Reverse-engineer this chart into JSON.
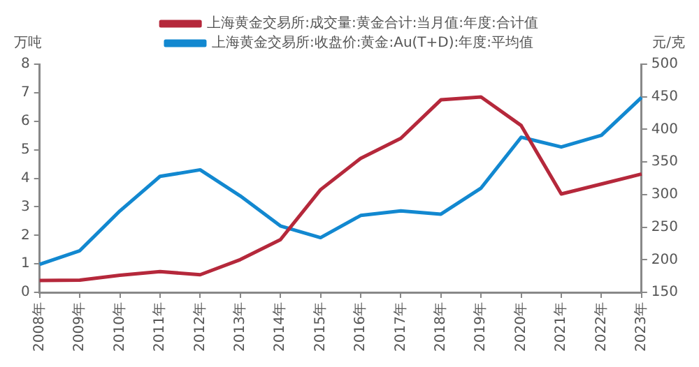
{
  "chart_data": {
    "type": "line",
    "ylabel": "万吨",
    "y2label": "元/克",
    "categories": [
      "2008年",
      "2009年",
      "2010年",
      "2011年",
      "2012年",
      "2013年",
      "2014年",
      "2015年",
      "2016年",
      "2017年",
      "2018年",
      "2019年",
      "2020年",
      "2021年",
      "2022年",
      "2023年"
    ],
    "series": [
      {
        "name": "上海黄金交易所:成交量:黄金合计:当月值:年度:合计值",
        "color": "#b5283b",
        "values": [
          0.42,
          0.43,
          0.6,
          0.73,
          0.62,
          1.15,
          1.85,
          3.6,
          4.7,
          5.4,
          6.75,
          6.85,
          5.85,
          3.45,
          3.8,
          4.15
        ]
      },
      {
        "name": "上海黄金交易所:收盘价:黄金:Au(T+D):年度:平均值",
        "color": "#1288d0",
        "axis": "y2",
        "values": [
          193,
          214,
          275,
          328,
          338,
          298,
          252,
          234,
          268,
          275,
          270,
          310,
          388,
          373,
          391,
          449
        ]
      }
    ],
    "ylim": [
      0,
      8
    ],
    "yticks": [
      0,
      1,
      2,
      3,
      4,
      5,
      6,
      7,
      8
    ],
    "y2lim": [
      150,
      500
    ],
    "y2ticks": [
      150,
      200,
      250,
      300,
      350,
      400,
      450,
      500
    ],
    "grid": false,
    "legend": "top",
    "marker": "none",
    "line_style": "solid"
  }
}
